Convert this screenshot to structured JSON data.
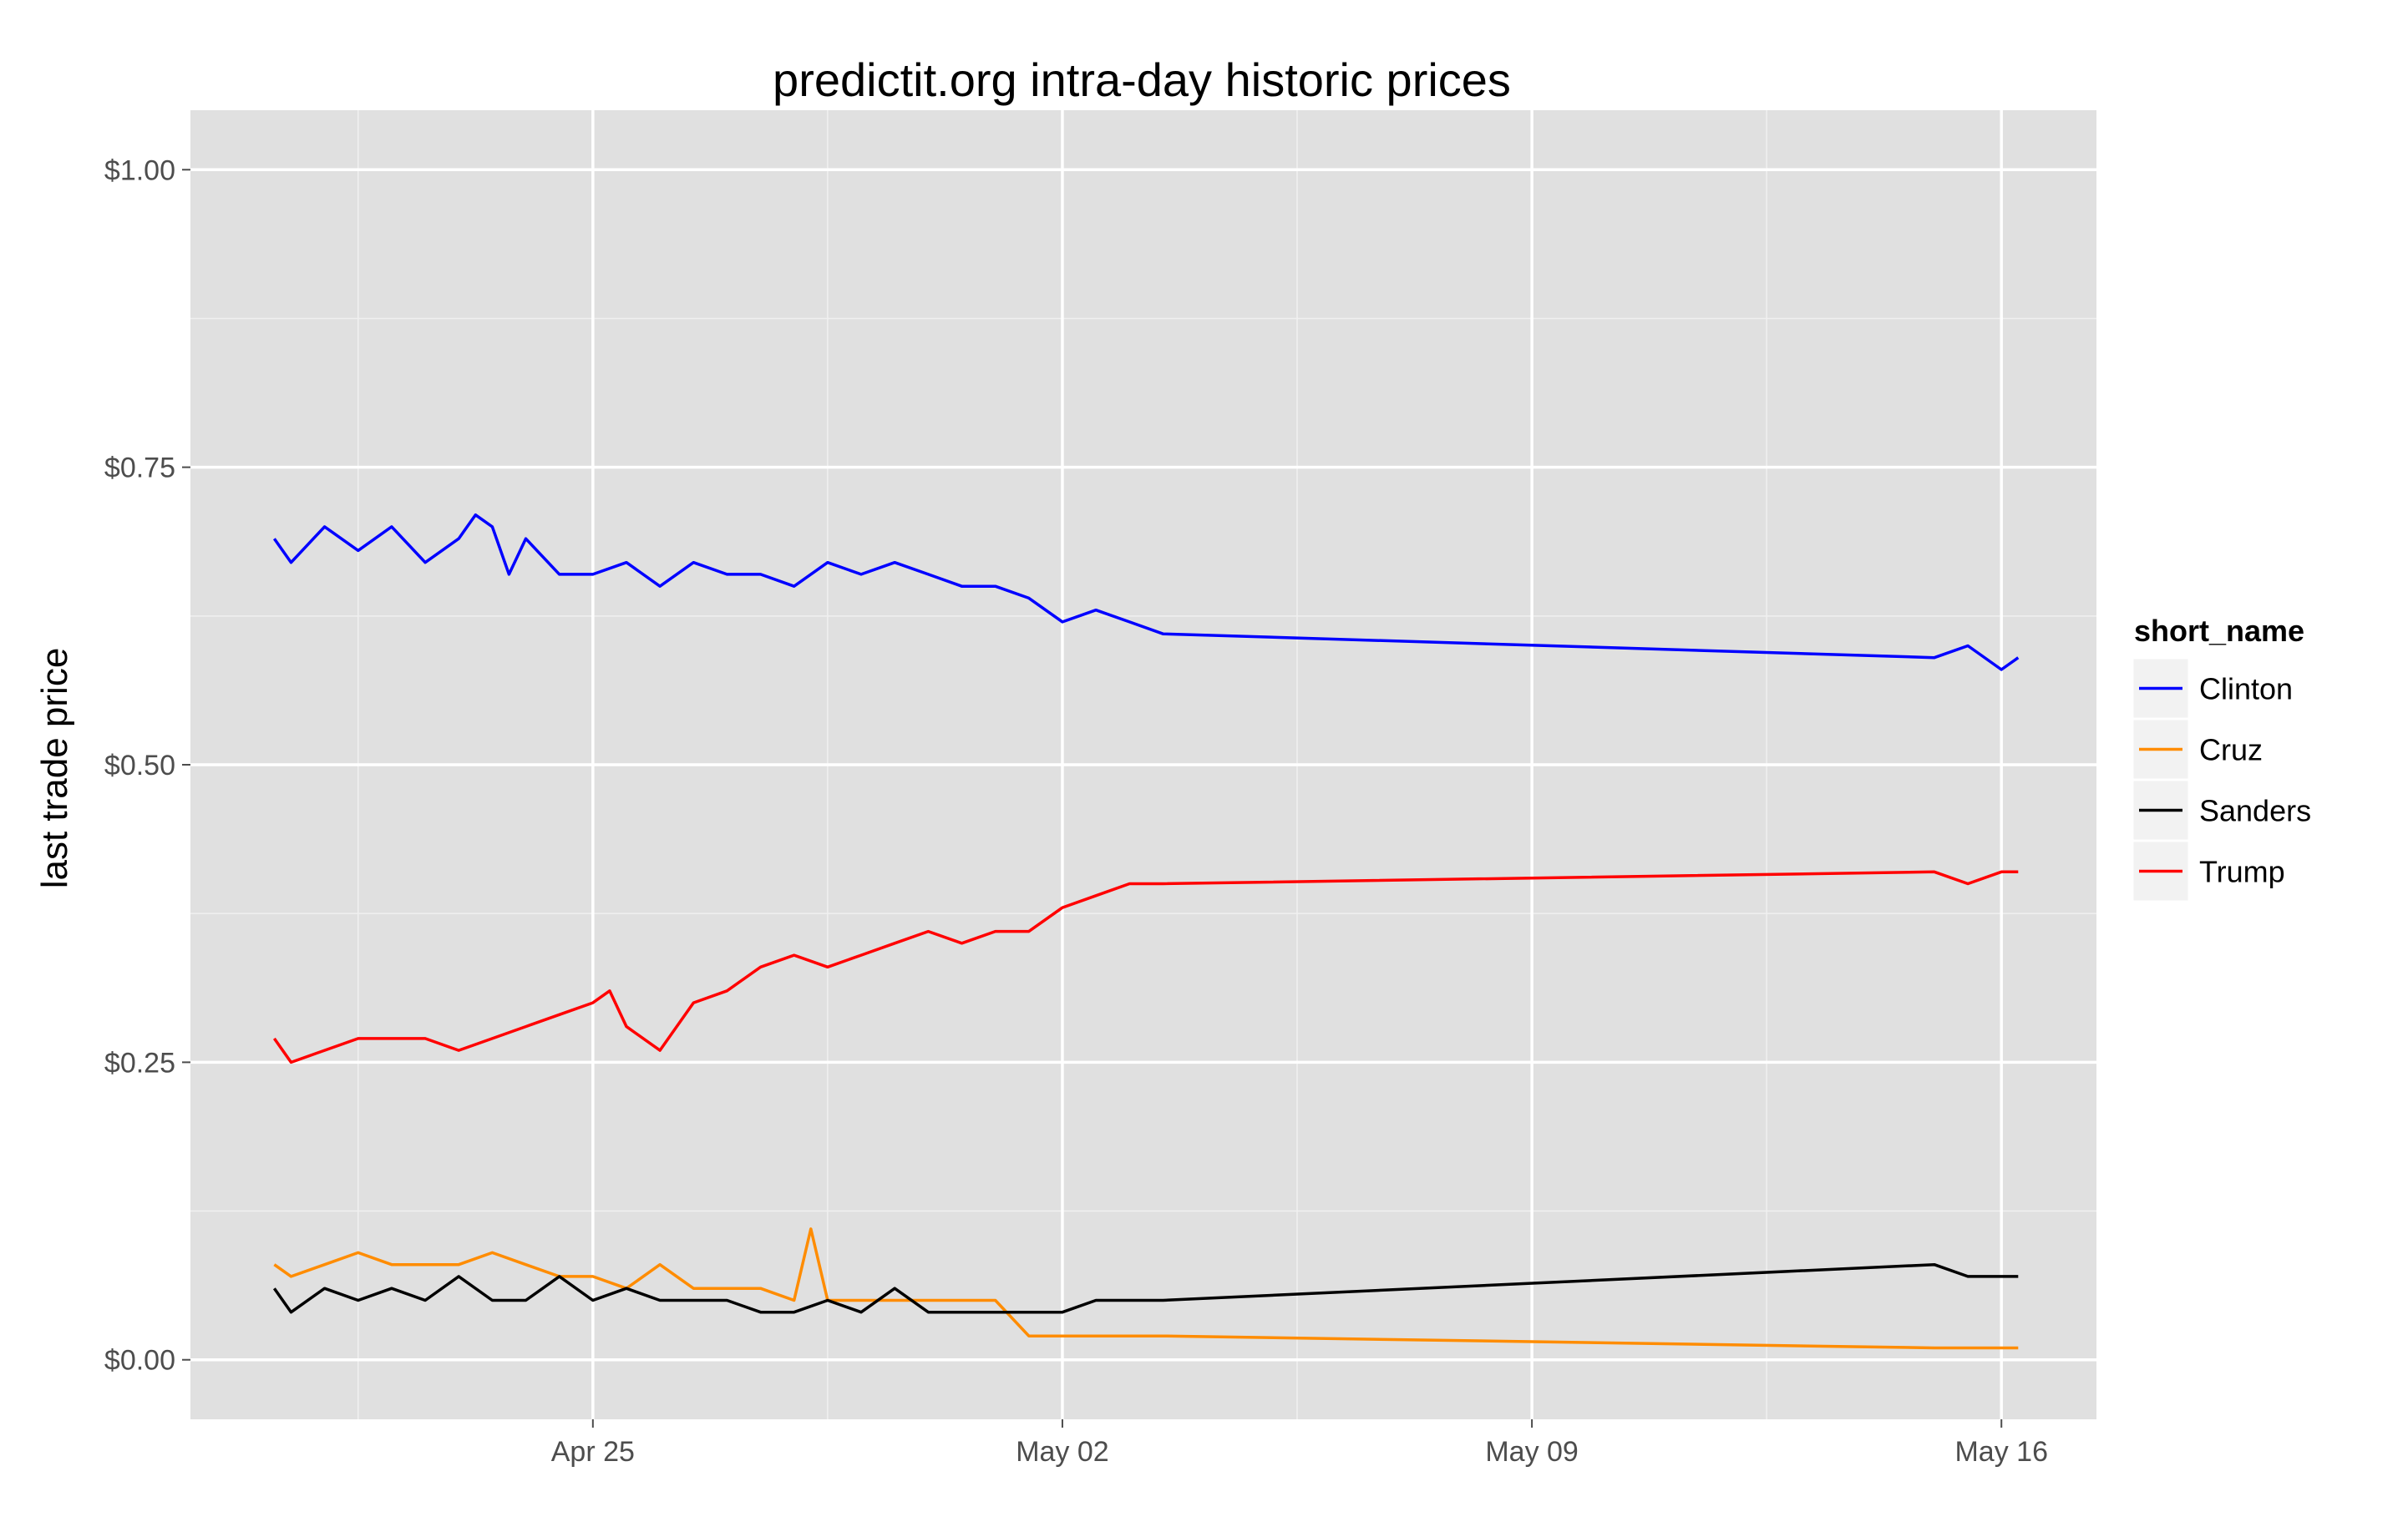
{
  "chart_data": {
    "type": "line",
    "title": "predictit.org intra-day historic prices",
    "xlabel": "",
    "ylabel": "last trade price",
    "x_ticks": [
      "Apr 25",
      "May 02",
      "May 09",
      "May 16"
    ],
    "y_ticks": [
      "$0.00",
      "$0.25",
      "$0.50",
      "$0.75",
      "$1.00"
    ],
    "y_tick_values": [
      0.0,
      0.25,
      0.5,
      0.75,
      1.0
    ],
    "xlim": [
      "2016-04-19 00:00",
      "2016-05-17 10:00"
    ],
    "ylim": [
      -0.05,
      1.05
    ],
    "grid": true,
    "background": "#e0e0e0",
    "legend": {
      "title": "short_name",
      "position": "right"
    },
    "series": [
      {
        "name": "Clinton",
        "color": "#0000ff",
        "points": [
          [
            "2016-04-20 06:00",
            0.69
          ],
          [
            "2016-04-20 12:00",
            0.67
          ],
          [
            "2016-04-21 00:00",
            0.7
          ],
          [
            "2016-04-21 12:00",
            0.68
          ],
          [
            "2016-04-22 00:00",
            0.7
          ],
          [
            "2016-04-22 12:00",
            0.67
          ],
          [
            "2016-04-23 00:00",
            0.69
          ],
          [
            "2016-04-23 06:00",
            0.71
          ],
          [
            "2016-04-23 12:00",
            0.7
          ],
          [
            "2016-04-23 18:00",
            0.66
          ],
          [
            "2016-04-24 00:00",
            0.69
          ],
          [
            "2016-04-24 12:00",
            0.66
          ],
          [
            "2016-04-25 00:00",
            0.66
          ],
          [
            "2016-04-25 12:00",
            0.67
          ],
          [
            "2016-04-26 00:00",
            0.65
          ],
          [
            "2016-04-26 12:00",
            0.67
          ],
          [
            "2016-04-27 00:00",
            0.66
          ],
          [
            "2016-04-27 12:00",
            0.66
          ],
          [
            "2016-04-28 00:00",
            0.65
          ],
          [
            "2016-04-28 12:00",
            0.67
          ],
          [
            "2016-04-29 00:00",
            0.66
          ],
          [
            "2016-04-29 12:00",
            0.67
          ],
          [
            "2016-04-30 00:00",
            0.66
          ],
          [
            "2016-04-30 12:00",
            0.65
          ],
          [
            "2016-05-01 00:00",
            0.65
          ],
          [
            "2016-05-01 12:00",
            0.64
          ],
          [
            "2016-05-02 00:00",
            0.62
          ],
          [
            "2016-05-02 12:00",
            0.63
          ],
          [
            "2016-05-03 00:00",
            0.62
          ],
          [
            "2016-05-03 12:00",
            0.61
          ],
          [
            "2016-05-15 00:00",
            0.59
          ],
          [
            "2016-05-15 12:00",
            0.6
          ],
          [
            "2016-05-16 00:00",
            0.58
          ],
          [
            "2016-05-16 06:00",
            0.59
          ]
        ]
      },
      {
        "name": "Cruz",
        "color": "#ff8c00",
        "points": [
          [
            "2016-04-20 06:00",
            0.08
          ],
          [
            "2016-04-20 12:00",
            0.07
          ],
          [
            "2016-04-21 00:00",
            0.08
          ],
          [
            "2016-04-21 12:00",
            0.09
          ],
          [
            "2016-04-22 00:00",
            0.08
          ],
          [
            "2016-04-22 12:00",
            0.08
          ],
          [
            "2016-04-23 00:00",
            0.08
          ],
          [
            "2016-04-23 12:00",
            0.09
          ],
          [
            "2016-04-24 00:00",
            0.08
          ],
          [
            "2016-04-24 12:00",
            0.07
          ],
          [
            "2016-04-25 00:00",
            0.07
          ],
          [
            "2016-04-25 12:00",
            0.06
          ],
          [
            "2016-04-26 00:00",
            0.08
          ],
          [
            "2016-04-26 12:00",
            0.06
          ],
          [
            "2016-04-27 00:00",
            0.06
          ],
          [
            "2016-04-27 12:00",
            0.06
          ],
          [
            "2016-04-28 00:00",
            0.05
          ],
          [
            "2016-04-28 06:00",
            0.11
          ],
          [
            "2016-04-28 12:00",
            0.05
          ],
          [
            "2016-04-29 00:00",
            0.05
          ],
          [
            "2016-04-29 12:00",
            0.05
          ],
          [
            "2016-04-30 00:00",
            0.05
          ],
          [
            "2016-04-30 12:00",
            0.05
          ],
          [
            "2016-05-01 00:00",
            0.05
          ],
          [
            "2016-05-01 12:00",
            0.02
          ],
          [
            "2016-05-02 00:00",
            0.02
          ],
          [
            "2016-05-02 12:00",
            0.02
          ],
          [
            "2016-05-03 00:00",
            0.02
          ],
          [
            "2016-05-03 12:00",
            0.02
          ],
          [
            "2016-05-15 00:00",
            0.01
          ],
          [
            "2016-05-16 06:00",
            0.01
          ]
        ]
      },
      {
        "name": "Sanders",
        "color": "#000000",
        "points": [
          [
            "2016-04-20 06:00",
            0.06
          ],
          [
            "2016-04-20 12:00",
            0.04
          ],
          [
            "2016-04-21 00:00",
            0.06
          ],
          [
            "2016-04-21 12:00",
            0.05
          ],
          [
            "2016-04-22 00:00",
            0.06
          ],
          [
            "2016-04-22 12:00",
            0.05
          ],
          [
            "2016-04-23 00:00",
            0.07
          ],
          [
            "2016-04-23 12:00",
            0.05
          ],
          [
            "2016-04-24 00:00",
            0.05
          ],
          [
            "2016-04-24 12:00",
            0.07
          ],
          [
            "2016-04-25 00:00",
            0.05
          ],
          [
            "2016-04-25 12:00",
            0.06
          ],
          [
            "2016-04-26 00:00",
            0.05
          ],
          [
            "2016-04-26 12:00",
            0.05
          ],
          [
            "2016-04-27 00:00",
            0.05
          ],
          [
            "2016-04-27 12:00",
            0.04
          ],
          [
            "2016-04-28 00:00",
            0.04
          ],
          [
            "2016-04-28 12:00",
            0.05
          ],
          [
            "2016-04-29 00:00",
            0.04
          ],
          [
            "2016-04-29 12:00",
            0.06
          ],
          [
            "2016-04-30 00:00",
            0.04
          ],
          [
            "2016-04-30 12:00",
            0.04
          ],
          [
            "2016-05-01 00:00",
            0.04
          ],
          [
            "2016-05-01 12:00",
            0.04
          ],
          [
            "2016-05-02 00:00",
            0.04
          ],
          [
            "2016-05-02 12:00",
            0.05
          ],
          [
            "2016-05-03 00:00",
            0.05
          ],
          [
            "2016-05-03 12:00",
            0.05
          ],
          [
            "2016-05-15 00:00",
            0.08
          ],
          [
            "2016-05-15 12:00",
            0.07
          ],
          [
            "2016-05-16 00:00",
            0.07
          ],
          [
            "2016-05-16 06:00",
            0.07
          ]
        ]
      },
      {
        "name": "Trump",
        "color": "#ff0000",
        "points": [
          [
            "2016-04-20 06:00",
            0.27
          ],
          [
            "2016-04-20 12:00",
            0.25
          ],
          [
            "2016-04-21 00:00",
            0.26
          ],
          [
            "2016-04-21 12:00",
            0.27
          ],
          [
            "2016-04-22 00:00",
            0.27
          ],
          [
            "2016-04-22 12:00",
            0.27
          ],
          [
            "2016-04-23 00:00",
            0.26
          ],
          [
            "2016-04-23 12:00",
            0.27
          ],
          [
            "2016-04-24 00:00",
            0.28
          ],
          [
            "2016-04-24 12:00",
            0.29
          ],
          [
            "2016-04-25 00:00",
            0.3
          ],
          [
            "2016-04-25 06:00",
            0.31
          ],
          [
            "2016-04-25 12:00",
            0.28
          ],
          [
            "2016-04-26 00:00",
            0.26
          ],
          [
            "2016-04-26 12:00",
            0.3
          ],
          [
            "2016-04-27 00:00",
            0.31
          ],
          [
            "2016-04-27 12:00",
            0.33
          ],
          [
            "2016-04-28 00:00",
            0.34
          ],
          [
            "2016-04-28 12:00",
            0.33
          ],
          [
            "2016-04-29 00:00",
            0.34
          ],
          [
            "2016-04-29 12:00",
            0.35
          ],
          [
            "2016-04-30 00:00",
            0.36
          ],
          [
            "2016-04-30 12:00",
            0.35
          ],
          [
            "2016-05-01 00:00",
            0.36
          ],
          [
            "2016-05-01 12:00",
            0.36
          ],
          [
            "2016-05-02 00:00",
            0.38
          ],
          [
            "2016-05-02 12:00",
            0.39
          ],
          [
            "2016-05-03 00:00",
            0.4
          ],
          [
            "2016-05-03 12:00",
            0.4
          ],
          [
            "2016-05-15 00:00",
            0.41
          ],
          [
            "2016-05-15 12:00",
            0.4
          ],
          [
            "2016-05-16 00:00",
            0.41
          ],
          [
            "2016-05-16 06:00",
            0.41
          ]
        ]
      }
    ]
  }
}
